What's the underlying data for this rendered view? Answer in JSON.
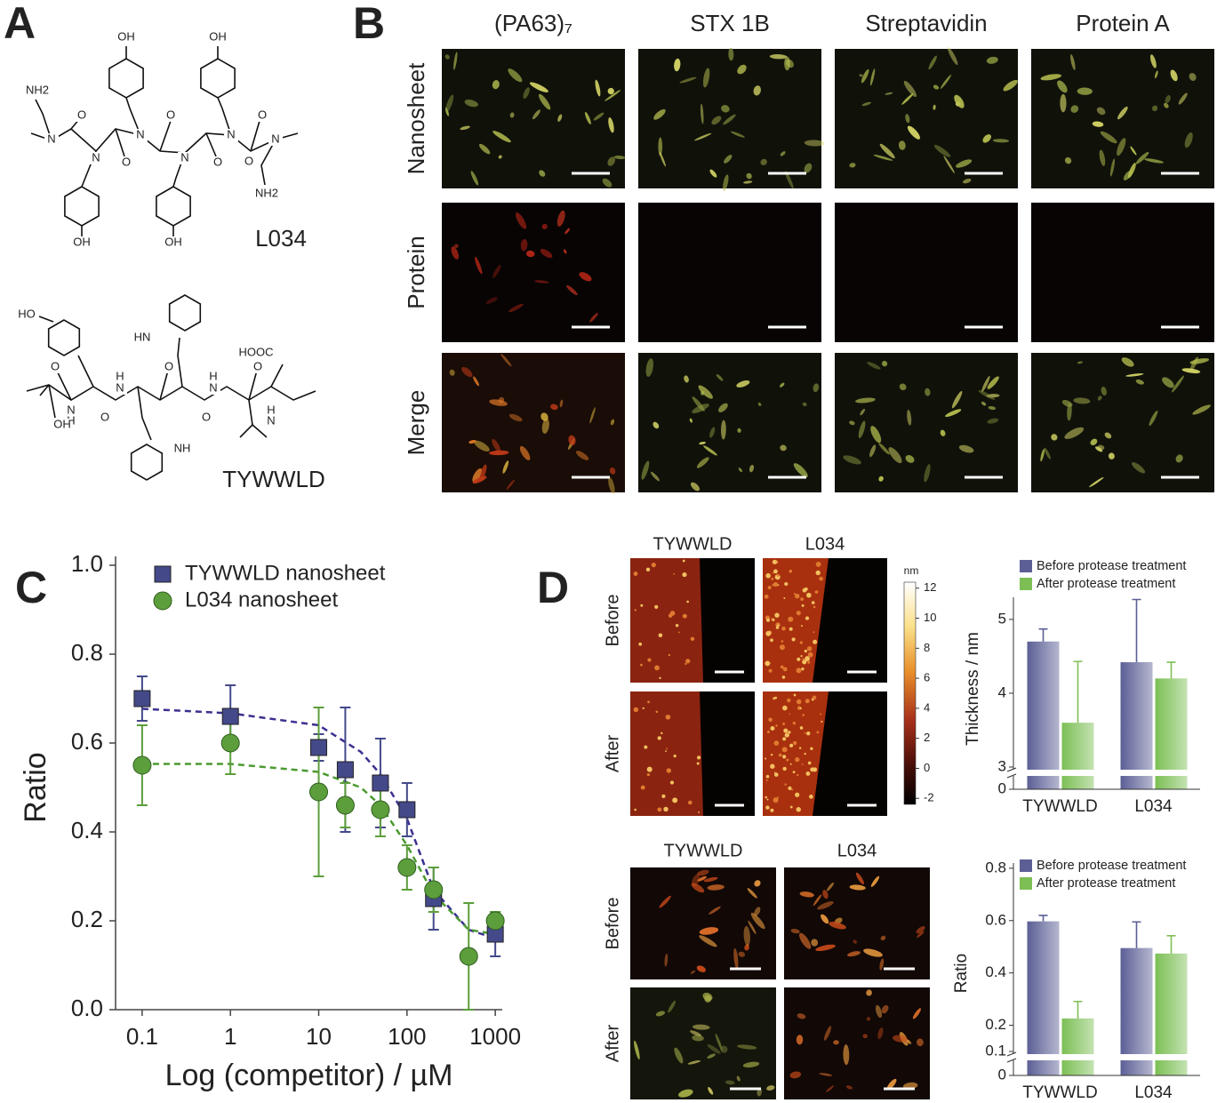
{
  "panel_labels": [
    "A",
    "B",
    "C",
    "D"
  ],
  "panel_a": {
    "structures": [
      {
        "name": "L034",
        "atoms": [
          "OH",
          "OH",
          "NH2",
          "O",
          "O",
          "O",
          "N",
          "N",
          "N",
          "N",
          "N",
          "N",
          "O",
          "O",
          "O",
          "NH2",
          "OH",
          "OH"
        ]
      },
      {
        "name": "TYWWLD",
        "atoms": [
          "HO",
          "HN",
          "HOOC",
          "O",
          "O",
          "O",
          "N",
          "H",
          "H",
          "N",
          "H",
          "N",
          "H",
          "N",
          "O",
          "O",
          "OH",
          "NH"
        ]
      }
    ]
  },
  "panel_b": {
    "columns": [
      "(PA63)₇",
      "STX 1B",
      "Streptavidin",
      "Protein A"
    ],
    "rows": [
      "Nanosheet",
      "Protein",
      "Merge"
    ]
  },
  "panel_d": {
    "afm": {
      "columns": [
        "TYWWLD",
        "L034"
      ],
      "rows": [
        "Before",
        "After"
      ],
      "colorbar": {
        "unit": "nm",
        "lim": [
          -2.4,
          12.4
        ],
        "ticks": [
          12,
          10,
          8,
          6,
          4,
          2,
          0,
          -2
        ]
      }
    },
    "fluorescence": {
      "columns": [
        "TYWWLD",
        "L034"
      ],
      "rows": [
        "Before",
        "After"
      ]
    }
  },
  "chart_data": [
    {
      "type": "scatter",
      "xscale": "log",
      "legend": "top-left",
      "xlabel": "Log (competitor) / µM",
      "ylabel": "Ratio",
      "xlim": [
        0.05,
        1200
      ],
      "ylim": [
        0,
        1
      ],
      "xticks": [
        0.1,
        1,
        10,
        100,
        1000
      ],
      "yticks": [
        {
          "value": 0,
          "label": "0.0"
        },
        0.2,
        0.4,
        0.6,
        0.8,
        {
          "value": 1,
          "label": "1.0"
        }
      ],
      "series": [
        {
          "name": "TYWWLD nanosheet",
          "color": "#44498a",
          "marker": "square",
          "x": [
            0.1,
            1,
            10,
            20,
            50,
            100,
            200,
            1000
          ],
          "values": [
            0.7,
            0.66,
            0.59,
            0.54,
            0.51,
            0.45,
            0.25,
            0.17
          ],
          "errors": [
            0.05,
            0.07,
            0.03,
            0.14,
            0.1,
            0.06,
            0.07,
            0.05
          ]
        },
        {
          "name": "L034 nanosheet",
          "color": "#5c9e3c",
          "marker": "circle",
          "x": [
            0.1,
            1,
            10,
            20,
            50,
            100,
            200,
            500,
            1000
          ],
          "values": [
            0.55,
            0.6,
            0.49,
            0.46,
            0.45,
            0.32,
            0.27,
            0.12,
            0.2
          ],
          "errors": [
            0.09,
            0.07,
            0.19,
            0.05,
            0.06,
            0.05,
            0.05,
            0.12,
            0.02
          ]
        }
      ],
      "fits": [
        {
          "color": "#3a3090",
          "x": [
            0.1,
            1,
            10,
            30,
            50,
            100,
            200,
            500,
            1000
          ],
          "values": [
            0.677,
            0.667,
            0.64,
            0.58,
            0.53,
            0.43,
            0.27,
            0.18,
            0.16
          ]
        },
        {
          "color": "#4a9a30",
          "x": [
            0.1,
            1,
            10,
            30,
            50,
            100,
            200,
            500,
            1000
          ],
          "values": [
            0.553,
            0.553,
            0.535,
            0.5,
            0.46,
            0.37,
            0.26,
            0.18,
            0.17
          ]
        }
      ]
    },
    {
      "type": "bar",
      "legend": "top-left",
      "ylabel": "Thickness / nm",
      "categories": [
        "TYWWLD",
        "L034"
      ],
      "ylim": [
        0,
        5.3
      ],
      "axis_break": [
        0,
        3
      ],
      "yticks": [
        0,
        3,
        4,
        5
      ],
      "series": [
        {
          "name": "Before protease treatment",
          "color": "#5b5f95",
          "values": [
            4.7,
            4.42
          ],
          "errors": [
            0.17,
            0.85
          ]
        },
        {
          "name": "After protease treatment",
          "color": "#7dbf55",
          "values": [
            3.6,
            4.2
          ],
          "errors": [
            0.83,
            0.22
          ]
        }
      ]
    },
    {
      "type": "bar",
      "legend": "top-left",
      "ylabel": "Ratio",
      "categories": [
        "TYWWLD",
        "L034"
      ],
      "ylim": [
        0,
        0.82
      ],
      "axis_break": [
        0,
        0.1
      ],
      "yticks": [
        0,
        0.1,
        0.2,
        0.4,
        0.6,
        0.8
      ],
      "series": [
        {
          "name": "Before protease treatment",
          "color": "#5b5f95",
          "values": [
            0.597,
            0.495
          ],
          "errors": [
            0.023,
            0.1
          ]
        },
        {
          "name": "After protease treatment",
          "color": "#7dbf55",
          "values": [
            0.226,
            0.474
          ],
          "errors": [
            0.065,
            0.068
          ]
        }
      ]
    }
  ]
}
